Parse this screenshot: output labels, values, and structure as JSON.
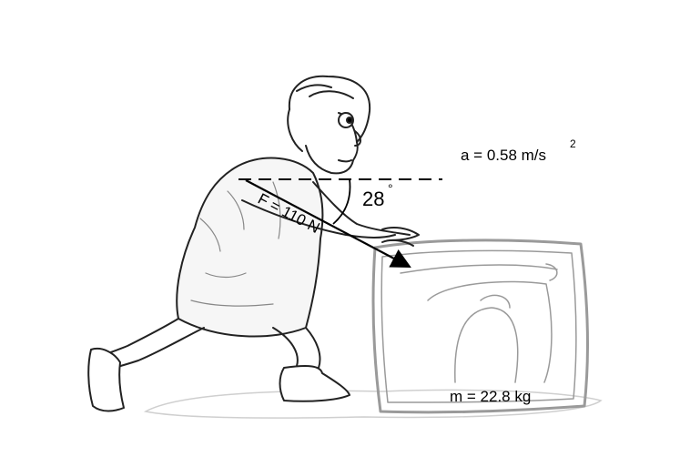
{
  "labels": {
    "force": "F = 110 N",
    "angle": "28",
    "degree": "°",
    "acceleration": "a = 0.58 m/s",
    "acceleration_exp": "2",
    "mass": "m = 22.8 kg"
  },
  "quantities": {
    "force_N": 110,
    "angle_deg": 28,
    "acceleration_ms2": 0.58,
    "mass_kg": 22.8
  },
  "colors": {
    "ink": "#000000",
    "block": "#9a9a9a",
    "ground_shadow": "#cfcfcf"
  }
}
